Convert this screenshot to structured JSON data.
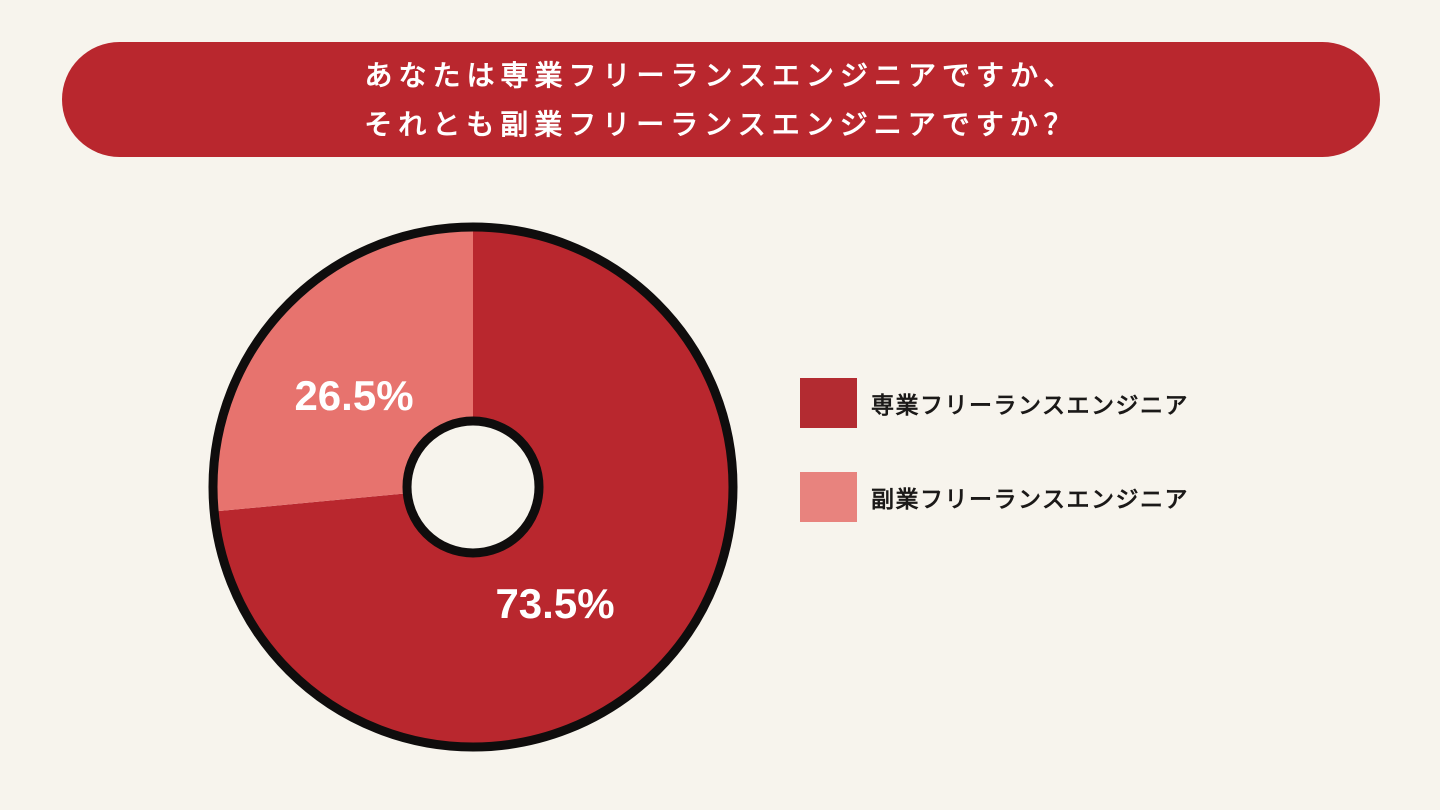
{
  "background_color": "#F7F4ED",
  "banner": {
    "color": "#B9272E",
    "text_color": "#FFFFFF",
    "line1": "あなたは専業フリーランスエンジニアですか、",
    "line2": "それとも副業フリーランスエンジニアですか？"
  },
  "chart_data": {
    "type": "pie",
    "donut": true,
    "title": "あなたは専業フリーランスエンジニアですか、それとも副業フリーランスエンジニアですか？",
    "categories": [
      "専業フリーランスエンジニア",
      "副業フリーランスエンジニア"
    ],
    "values": [
      73.5,
      26.5
    ],
    "value_labels": [
      "73.5%",
      "26.5%"
    ],
    "colors": [
      "#B9272E",
      "#E7736E"
    ],
    "outline_color": "#0F0D0D",
    "start_angle_deg": 0,
    "direction": "clockwise",
    "legend_position": "right"
  },
  "legend": {
    "items": [
      {
        "label": "専業フリーランスエンジニア",
        "color": "#B32B31"
      },
      {
        "label": "副業フリーランスエンジニア",
        "color": "#E8837E"
      }
    ]
  }
}
